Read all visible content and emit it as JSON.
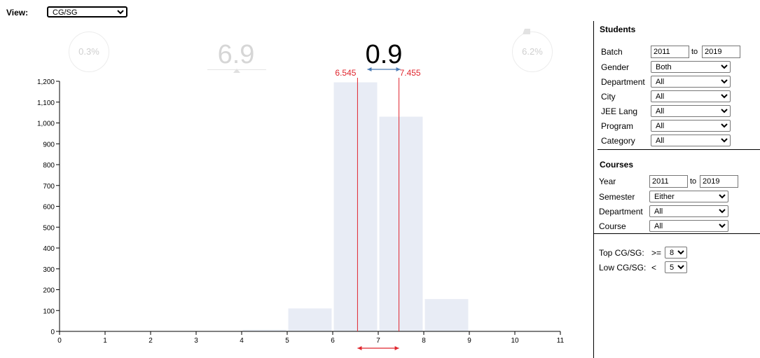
{
  "view": {
    "label": "View:",
    "selected": "CG/SG"
  },
  "stats": {
    "left_percent": "0.3%",
    "faded_value": "6.9",
    "main_value": "0.9",
    "right_percent": "6.2%"
  },
  "chart_data": {
    "type": "bar",
    "bins": [
      {
        "from": 4,
        "to": 5,
        "value": 8
      },
      {
        "from": 5,
        "to": 6,
        "value": 110
      },
      {
        "from": 6,
        "to": 7,
        "value": 1195
      },
      {
        "from": 7,
        "to": 8,
        "value": 1030
      },
      {
        "from": 8,
        "to": 9,
        "value": 155
      }
    ],
    "xlim": [
      0,
      11
    ],
    "ylim": [
      0,
      1200
    ],
    "x_ticks": [
      "0",
      "1",
      "2",
      "3",
      "4",
      "5",
      "6",
      "7",
      "8",
      "9",
      "10",
      "11"
    ],
    "y_ticks": [
      "0",
      "100",
      "200",
      "300",
      "400",
      "500",
      "600",
      "700",
      "800",
      "900",
      "1,000",
      "1,100",
      "1,200"
    ],
    "markers": [
      {
        "x": 6.545,
        "label": "6.545"
      },
      {
        "x": 7.455,
        "label": "7.455"
      }
    ],
    "colors": {
      "bar": "#e8ecf5",
      "marker": "#e0262e",
      "top_arrow": "#4a7bb5",
      "bottom_arrow": "#e0262e",
      "axis": "#000000"
    }
  },
  "students": {
    "title": "Students",
    "batch": {
      "label": "Batch",
      "from": "2011",
      "to_label": "to",
      "to": "2019"
    },
    "filters": [
      {
        "label": "Gender",
        "value": "Both"
      },
      {
        "label": "Department",
        "value": "All"
      },
      {
        "label": "City",
        "value": "All"
      },
      {
        "label": "JEE Lang",
        "value": "All"
      },
      {
        "label": "Program",
        "value": "All"
      },
      {
        "label": "Category",
        "value": "All"
      }
    ]
  },
  "courses": {
    "title": "Courses",
    "year": {
      "label": "Year",
      "from": "2011",
      "to_label": "to",
      "to": "2019"
    },
    "filters": [
      {
        "label": "Semester",
        "value": "Either"
      },
      {
        "label": "Department",
        "value": "All"
      },
      {
        "label": "Course",
        "value": "All"
      }
    ]
  },
  "thresholds": {
    "top": {
      "label": "Top CG/SG:",
      "op": ">=",
      "value": "8"
    },
    "low": {
      "label": "Low CG/SG:",
      "op": "<",
      "value": "5"
    }
  }
}
